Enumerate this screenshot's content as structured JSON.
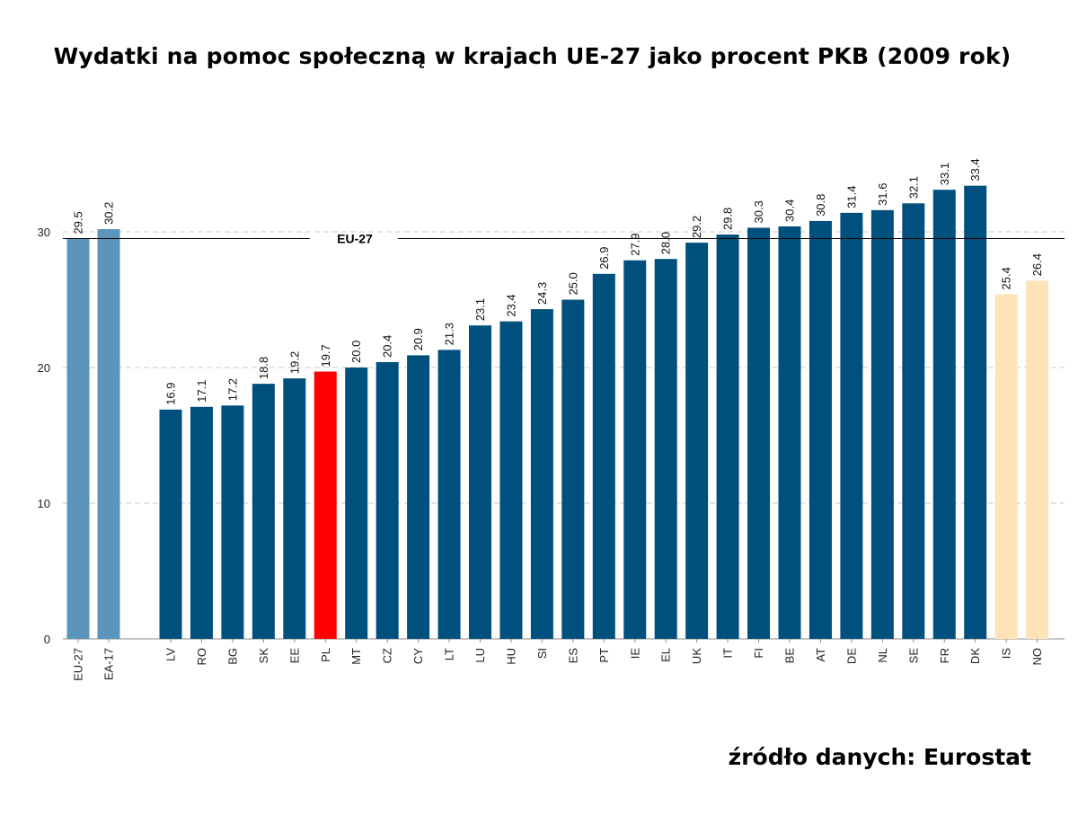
{
  "title": "Wydatki na pomoc społeczną w krajach UE-27 jako procent PKB (2009 rok)",
  "source": "źródło danych: Eurostat",
  "colors": {
    "aggregate": "#5b95bb",
    "eu_member": "#00507d",
    "highlight": "#ff0000",
    "non_eu": "#fde3b7",
    "grid": "#c8c8c8",
    "reference_line": "#000000"
  },
  "chart_data": {
    "type": "bar",
    "title": "Wydatki na pomoc społeczną w krajach UE-27 jako procent PKB (2009 rok)",
    "xlabel": "",
    "ylabel": "",
    "ylim": [
      0,
      35
    ],
    "yticks": [
      0,
      10,
      20,
      30
    ],
    "grid": "horizontal dashed",
    "reference_line": {
      "label": "EU-27",
      "value": 29.5
    },
    "categories": [
      "EU-27",
      "EA-17",
      "LV",
      "RO",
      "BG",
      "SK",
      "EE",
      "PL",
      "MT",
      "CZ",
      "CY",
      "LT",
      "LU",
      "HU",
      "SI",
      "ES",
      "PT",
      "IE",
      "EL",
      "UK",
      "IT",
      "FI",
      "BE",
      "AT",
      "DE",
      "NL",
      "SE",
      "FR",
      "DK",
      "IS",
      "NO"
    ],
    "values": [
      29.5,
      30.2,
      16.9,
      17.1,
      17.2,
      18.8,
      19.2,
      19.7,
      20.0,
      20.4,
      20.9,
      21.3,
      23.1,
      23.4,
      24.3,
      25.0,
      26.9,
      27.9,
      28.0,
      29.2,
      29.8,
      30.3,
      30.4,
      30.8,
      31.4,
      31.6,
      32.1,
      33.1,
      33.4,
      25.4,
      26.4
    ],
    "value_labels": [
      "29.5",
      "30.2",
      "16.9",
      "17.1",
      "17.2",
      "18.8",
      "19.2",
      "19.7",
      "20.0",
      "20.4",
      "20.9",
      "21.3",
      "23.1",
      "23.4",
      "24.3",
      "25.0",
      "26.9",
      "27.9",
      "28.0",
      "29.2",
      "29.8",
      "30.3",
      "30.4",
      "30.8",
      "31.4",
      "31.6",
      "32.1",
      "33.1",
      "33.4",
      "25.4",
      "26.4"
    ],
    "groups": [
      "aggregate",
      "aggregate",
      "eu_member",
      "eu_member",
      "eu_member",
      "eu_member",
      "eu_member",
      "highlight",
      "eu_member",
      "eu_member",
      "eu_member",
      "eu_member",
      "eu_member",
      "eu_member",
      "eu_member",
      "eu_member",
      "eu_member",
      "eu_member",
      "eu_member",
      "eu_member",
      "eu_member",
      "eu_member",
      "eu_member",
      "eu_member",
      "eu_member",
      "eu_member",
      "eu_member",
      "eu_member",
      "eu_member",
      "non_eu",
      "non_eu"
    ]
  }
}
